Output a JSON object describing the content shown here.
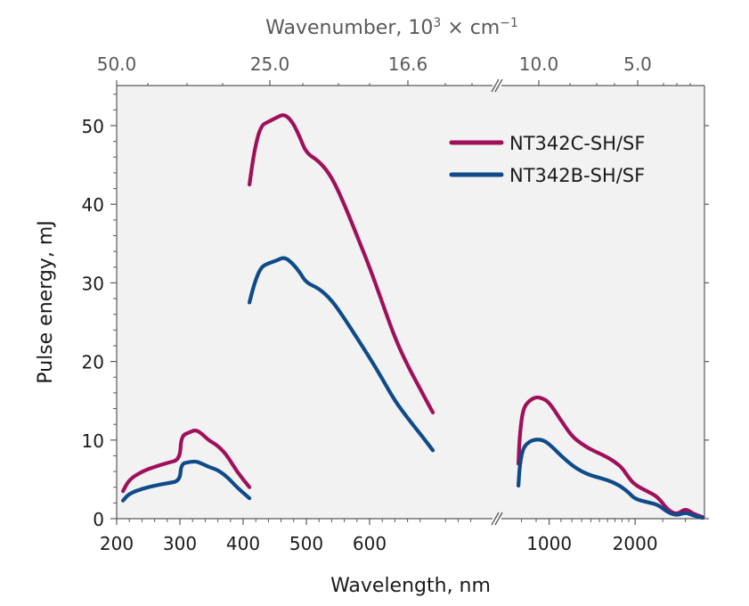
{
  "chart_data": {
    "type": "line",
    "xlabel": "Wavelength, nm",
    "ylabel": "Pulse energy, mJ",
    "top_axis": {
      "label_main": "Wavenumber, 10",
      "label_exp": "3",
      "label_unit": " × cm",
      "label_unit_exp": "−1",
      "ticks": [
        "50.0",
        "25.0",
        "16.6",
        "10.0",
        "5.0"
      ]
    },
    "ylim": [
      0,
      55
    ],
    "y_ticks": [
      "0",
      "10",
      "20",
      "30",
      "40",
      "50"
    ],
    "x_segments": [
      {
        "scale": "linear",
        "range": [
          200,
          800
        ],
        "ticks": [
          200,
          300,
          400,
          500,
          600
        ],
        "tick_labels": [
          "200",
          "300",
          "400",
          "500",
          "600"
        ]
      },
      {
        "scale": "log",
        "range": [
          700,
          3500
        ],
        "ticks": [
          1000,
          2000
        ],
        "tick_labels": [
          "1000",
          "2000"
        ]
      }
    ],
    "axis_break": true,
    "grid": false,
    "legend_position": "top-right",
    "series": [
      {
        "name": "NT342C-SH/SF",
        "color": "#a0105a",
        "segments": [
          {
            "axis": 0,
            "points": [
              [
                210,
                3.5
              ],
              [
                220,
                5
              ],
              [
                240,
                6
              ],
              [
                260,
                6.6
              ],
              [
                280,
                7.1
              ],
              [
                300,
                7.5
              ],
              [
                302,
                10.5
              ],
              [
                315,
                11
              ],
              [
                325,
                11.3
              ],
              [
                335,
                10.8
              ],
              [
                345,
                10
              ],
              [
                360,
                9.3
              ],
              [
                375,
                8
              ],
              [
                390,
                6
              ],
              [
                410,
                4
              ]
            ]
          },
          {
            "axis": 0,
            "points": [
              [
                410,
                42.5
              ],
              [
                418,
                47
              ],
              [
                428,
                50
              ],
              [
                440,
                50.5
              ],
              [
                452,
                51
              ],
              [
                465,
                51.5
              ],
              [
                478,
                50.5
              ],
              [
                490,
                48.5
              ],
              [
                500,
                46.5
              ],
              [
                520,
                45.5
              ],
              [
                540,
                43.5
              ],
              [
                560,
                40
              ],
              [
                580,
                36
              ],
              [
                600,
                32
              ],
              [
                620,
                27.5
              ],
              [
                640,
                23
              ],
              [
                660,
                19.5
              ],
              [
                680,
                16.5
              ],
              [
                700,
                13.5
              ]
            ]
          },
          {
            "axis": 1,
            "points": [
              [
                780,
                7
              ],
              [
                790,
                11
              ],
              [
                810,
                14
              ],
              [
                850,
                15
              ],
              [
                900,
                15.5
              ],
              [
                950,
                15.3
              ],
              [
                1000,
                14.8
              ],
              [
                1100,
                12.5
              ],
              [
                1200,
                10.5
              ],
              [
                1300,
                9.5
              ],
              [
                1400,
                8.8
              ],
              [
                1500,
                8.3
              ],
              [
                1600,
                7.8
              ],
              [
                1700,
                7.2
              ],
              [
                1800,
                6.5
              ],
              [
                1900,
                5.2
              ],
              [
                2000,
                4.3
              ],
              [
                2200,
                3.5
              ],
              [
                2400,
                2.8
              ],
              [
                2600,
                1.1
              ],
              [
                2800,
                0.5
              ],
              [
                3000,
                1.3
              ],
              [
                3200,
                0.6
              ],
              [
                3450,
                0.2
              ]
            ]
          }
        ]
      },
      {
        "name": "NT342B-SH/SF",
        "color": "#0f4a8a",
        "segments": [
          {
            "axis": 0,
            "points": [
              [
                210,
                2.3
              ],
              [
                220,
                3.2
              ],
              [
                240,
                3.8
              ],
              [
                260,
                4.2
              ],
              [
                280,
                4.5
              ],
              [
                300,
                4.8
              ],
              [
                302,
                7
              ],
              [
                315,
                7.2
              ],
              [
                325,
                7.3
              ],
              [
                335,
                7
              ],
              [
                345,
                6.6
              ],
              [
                360,
                6.2
              ],
              [
                375,
                5.3
              ],
              [
                390,
                4
              ],
              [
                410,
                2.6
              ]
            ]
          },
          {
            "axis": 0,
            "points": [
              [
                410,
                27.5
              ],
              [
                418,
                30
              ],
              [
                428,
                32
              ],
              [
                440,
                32.5
              ],
              [
                452,
                32.8
              ],
              [
                465,
                33.3
              ],
              [
                478,
                32.5
              ],
              [
                490,
                31.3
              ],
              [
                500,
                30
              ],
              [
                520,
                29.3
              ],
              [
                540,
                27.8
              ],
              [
                560,
                25.5
              ],
              [
                580,
                23
              ],
              [
                600,
                20.5
              ],
              [
                620,
                17.8
              ],
              [
                640,
                15
              ],
              [
                660,
                12.8
              ],
              [
                680,
                10.8
              ],
              [
                700,
                8.7
              ]
            ]
          },
          {
            "axis": 1,
            "points": [
              [
                780,
                4.2
              ],
              [
                790,
                7
              ],
              [
                810,
                9
              ],
              [
                850,
                9.8
              ],
              [
                900,
                10.1
              ],
              [
                950,
                10
              ],
              [
                1000,
                9.5
              ],
              [
                1100,
                8
              ],
              [
                1200,
                6.8
              ],
              [
                1300,
                6
              ],
              [
                1400,
                5.5
              ],
              [
                1500,
                5.2
              ],
              [
                1600,
                4.9
              ],
              [
                1700,
                4.5
              ],
              [
                1800,
                4
              ],
              [
                1900,
                3.3
              ],
              [
                2000,
                2.5
              ],
              [
                2200,
                2.1
              ],
              [
                2400,
                1.8
              ],
              [
                2600,
                0.8
              ],
              [
                2800,
                0.4
              ],
              [
                3000,
                0.8
              ],
              [
                3200,
                0.4
              ],
              [
                3450,
                0.1
              ]
            ]
          }
        ]
      }
    ]
  }
}
